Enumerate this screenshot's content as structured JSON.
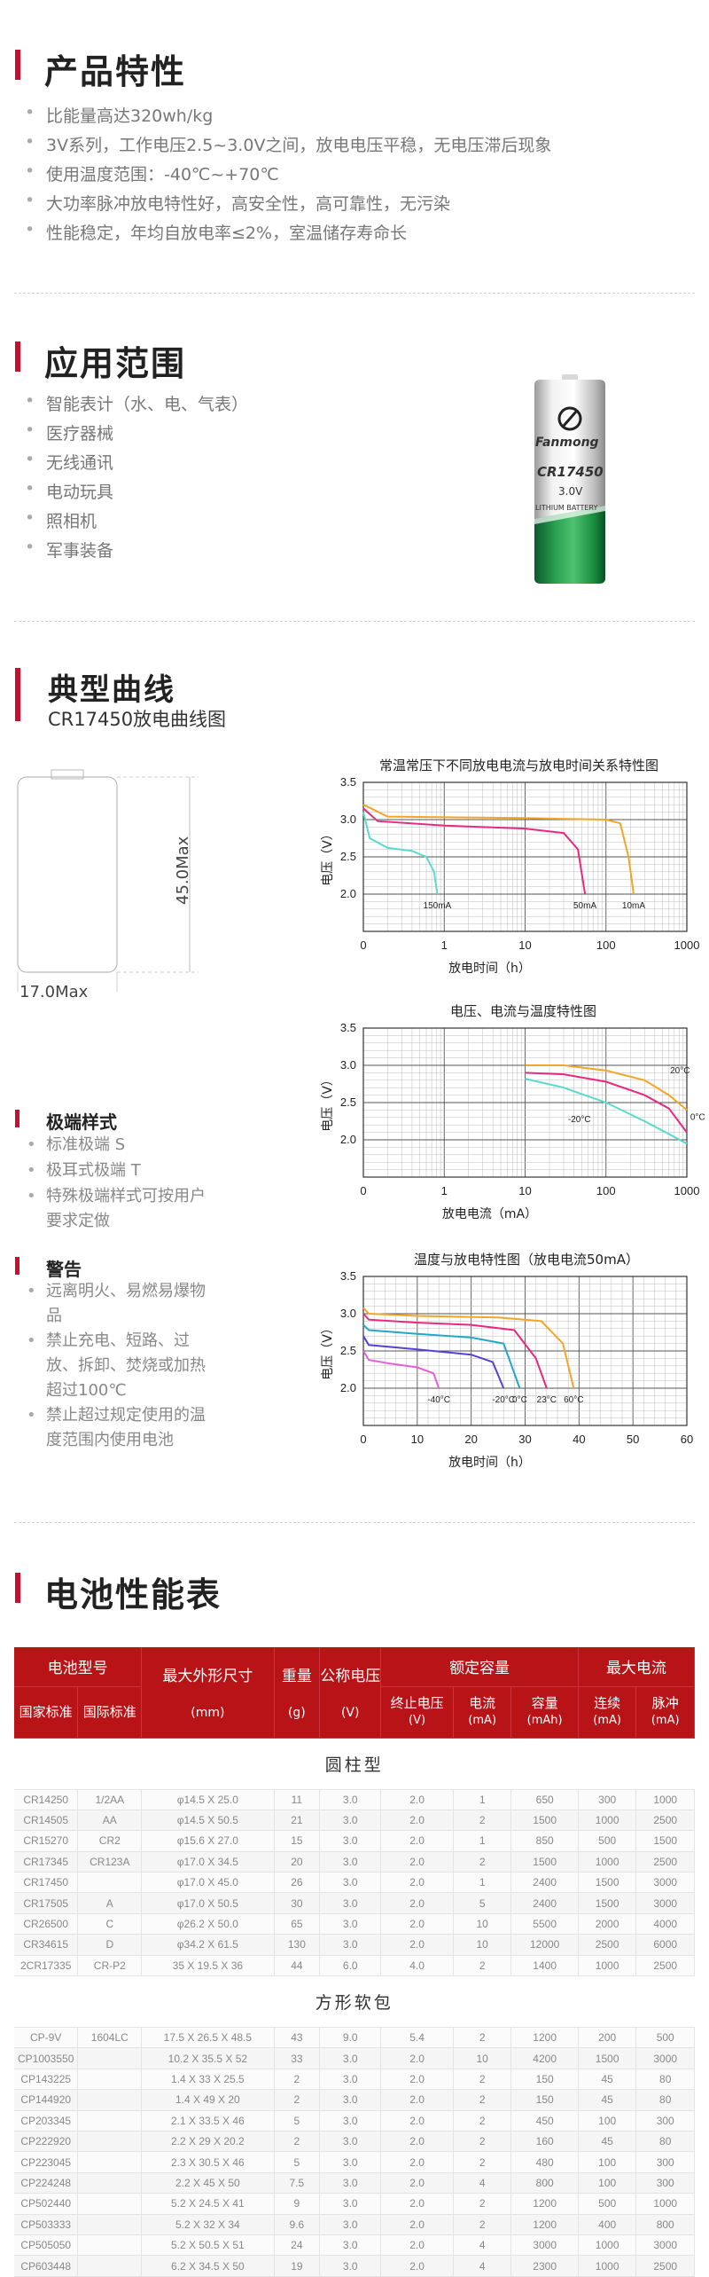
{
  "features": {
    "title": "产品特性",
    "items": [
      "比能量高达320wh/kg",
      "3V系列，工作电压2.5~3.0V之间，放电电压平稳，无电压滞后现象",
      "使用温度范围：-40℃~+70℃",
      "大功率脉冲放电特性好，高安全性，高可靠性，无污染",
      "性能稳定，年均自放电率≤2%，室温储存寿命长"
    ]
  },
  "applications": {
    "title": "应用范围",
    "items": [
      "智能表计（水、电、气表）",
      "医疗器械",
      "无线通讯",
      "电动玩具",
      "照相机",
      "军事装备"
    ],
    "battery_label": {
      "brand": "Fanmong",
      "model": "CR17450",
      "voltage": "3.0V",
      "type": "LITHIUM BATTERY"
    }
  },
  "curves": {
    "title": "典型曲线",
    "subtitle": "CR17450放电曲线图",
    "dim_height": "45.0Max",
    "dim_width": "17.0Max"
  },
  "terminals": {
    "title": "极端样式",
    "items": [
      "标准极端 S",
      "极耳式极端 T",
      "特殊极端样式可按用户要求定做"
    ]
  },
  "warnings": {
    "title": "警告",
    "items": [
      "远离明火、易燃易爆物品",
      "禁止充电、短路、过放、拆卸、焚烧或加热超过100℃",
      "禁止超过规定使用的温度范围内使用电池"
    ]
  },
  "chart_data": [
    {
      "type": "line",
      "title": "常温常压下不同放电电流与放电时间关系特性图",
      "xlabel": "放电时间（h）",
      "ylabel": "电压（V）",
      "xscale": "log",
      "xlim": [
        0.1,
        1000
      ],
      "ylim": [
        1.5,
        3.5
      ],
      "xticks": [
        "0",
        "1",
        "10",
        "100",
        "1000"
      ],
      "yticks": [
        "2.0",
        "2.5",
        "3.0",
        "3.5"
      ],
      "series": [
        {
          "name": "150mA",
          "color": "#5ad9cf",
          "points": [
            [
              0.1,
              3.1
            ],
            [
              0.12,
              2.75
            ],
            [
              0.2,
              2.62
            ],
            [
              0.4,
              2.58
            ],
            [
              0.6,
              2.5
            ],
            [
              0.75,
              2.3
            ],
            [
              0.82,
              2.0
            ]
          ]
        },
        {
          "name": "50mA",
          "color": "#e8297f",
          "points": [
            [
              0.1,
              3.15
            ],
            [
              0.15,
              2.98
            ],
            [
              1,
              2.92
            ],
            [
              10,
              2.88
            ],
            [
              30,
              2.82
            ],
            [
              45,
              2.6
            ],
            [
              55,
              2.0
            ]
          ]
        },
        {
          "name": "10mA",
          "color": "#f3a529",
          "points": [
            [
              0.1,
              3.2
            ],
            [
              0.2,
              3.04
            ],
            [
              10,
              3.02
            ],
            [
              100,
              3.0
            ],
            [
              150,
              2.95
            ],
            [
              190,
              2.5
            ],
            [
              220,
              2.0
            ]
          ]
        }
      ]
    },
    {
      "type": "line",
      "title": "电压、电流与温度特性图",
      "xlabel": "放电电流（mA）",
      "ylabel": "电压（V）",
      "xscale": "log",
      "xlim": [
        0.1,
        1000
      ],
      "ylim": [
        1.5,
        3.5
      ],
      "xticks": [
        "0",
        "1",
        "10",
        "100",
        "1000"
      ],
      "yticks": [
        "2.0",
        "2.5",
        "3.0",
        "3.5"
      ],
      "series": [
        {
          "name": "20°C",
          "color": "#f3a529",
          "points": [
            [
              10,
              3.0
            ],
            [
              30,
              3.0
            ],
            [
              100,
              2.93
            ],
            [
              300,
              2.8
            ],
            [
              600,
              2.6
            ],
            [
              1000,
              2.4
            ]
          ]
        },
        {
          "name": "0°C",
          "color": "#e8297f",
          "points": [
            [
              10,
              2.9
            ],
            [
              30,
              2.88
            ],
            [
              100,
              2.78
            ],
            [
              300,
              2.6
            ],
            [
              600,
              2.42
            ],
            [
              1000,
              2.1
            ]
          ]
        },
        {
          "name": "-20°C",
          "color": "#5ad9cf",
          "points": [
            [
              10,
              2.82
            ],
            [
              30,
              2.7
            ],
            [
              100,
              2.5
            ],
            [
              300,
              2.25
            ],
            [
              1000,
              1.95
            ]
          ]
        }
      ]
    },
    {
      "type": "line",
      "title": "温度与放电特性图（放电电流50mA）",
      "xlabel": "放电时间（h）",
      "ylabel": "电压（V）",
      "xlim": [
        0,
        60
      ],
      "ylim": [
        1.5,
        3.5
      ],
      "xticks": [
        "0",
        "10",
        "20",
        "30",
        "40",
        "50",
        "60"
      ],
      "yticks": [
        "2.0",
        "2.5",
        "3.0",
        "3.5"
      ],
      "series": [
        {
          "name": "-40°C",
          "color": "#e55fd6",
          "points": [
            [
              0,
              2.5
            ],
            [
              1,
              2.38
            ],
            [
              5,
              2.33
            ],
            [
              10,
              2.28
            ],
            [
              13,
              2.2
            ],
            [
              14,
              2.0
            ]
          ]
        },
        {
          "name": "-20°C",
          "color": "#5a3fd8",
          "points": [
            [
              0,
              2.7
            ],
            [
              1,
              2.58
            ],
            [
              10,
              2.52
            ],
            [
              20,
              2.45
            ],
            [
              24,
              2.35
            ],
            [
              26,
              2.0
            ]
          ]
        },
        {
          "name": "0°C",
          "color": "#22a8c8",
          "points": [
            [
              0,
              2.85
            ],
            [
              1,
              2.78
            ],
            [
              10,
              2.73
            ],
            [
              20,
              2.68
            ],
            [
              26,
              2.6
            ],
            [
              29,
              2.0
            ]
          ]
        },
        {
          "name": "23°C",
          "color": "#e8297f",
          "points": [
            [
              0,
              3.0
            ],
            [
              1,
              2.92
            ],
            [
              10,
              2.88
            ],
            [
              20,
              2.85
            ],
            [
              28,
              2.78
            ],
            [
              32,
              2.4
            ],
            [
              34,
              2.0
            ]
          ]
        },
        {
          "name": "60°C",
          "color": "#f3a529",
          "points": [
            [
              0,
              3.08
            ],
            [
              1,
              3.0
            ],
            [
              10,
              2.97
            ],
            [
              25,
              2.95
            ],
            [
              33,
              2.9
            ],
            [
              37,
              2.6
            ],
            [
              39,
              2.0
            ]
          ]
        }
      ]
    }
  ],
  "perf": {
    "title": "电池性能表",
    "headers": {
      "model": "电池型号",
      "size": "最大外形尺寸",
      "weight": "重量",
      "voltage": "公称电压",
      "rated": "额定容量",
      "maxcur": "最大电流",
      "national": "国家标准",
      "intl": "国际标准",
      "size_unit": "(mm)",
      "weight_unit": "(g)",
      "voltage_unit": "(V)",
      "cutoff": "终止电压\n(V)",
      "current": "电流\n(mA)",
      "capacity": "容量\n(mAh)",
      "cont": "连续\n(mA)",
      "pulse": "脉冲\n(mA)"
    },
    "groups": [
      {
        "name": "圆柱型",
        "rows": [
          [
            "CR14250",
            "1/2AA",
            "φ14.5 X 25.0",
            "11",
            "3.0",
            "2.0",
            "1",
            "650",
            "300",
            "1000"
          ],
          [
            "CR14505",
            "AA",
            "φ14.5 X 50.5",
            "21",
            "3.0",
            "2.0",
            "2",
            "1500",
            "1000",
            "2500"
          ],
          [
            "CR15270",
            "CR2",
            "φ15.6 X 27.0",
            "15",
            "3.0",
            "2.0",
            "1",
            "850",
            "500",
            "1500"
          ],
          [
            "CR17345",
            "CR123A",
            "φ17.0 X 34.5",
            "20",
            "3.0",
            "2.0",
            "2",
            "1500",
            "1000",
            "2500"
          ],
          [
            "CR17450",
            "",
            "φ17.0 X 45.0",
            "26",
            "3.0",
            "2.0",
            "1",
            "2400",
            "1500",
            "3000"
          ],
          [
            "CR17505",
            "A",
            "φ17.0 X 50.5",
            "30",
            "3.0",
            "2.0",
            "5",
            "2400",
            "1500",
            "3000"
          ],
          [
            "CR26500",
            "C",
            "φ26.2 X 50.0",
            "65",
            "3.0",
            "2.0",
            "10",
            "5500",
            "2000",
            "4000"
          ],
          [
            "CR34615",
            "D",
            "φ34.2 X 61.5",
            "130",
            "3.0",
            "2.0",
            "10",
            "12000",
            "2500",
            "6000"
          ],
          [
            "2CR17335",
            "CR-P2",
            "35 X 19.5 X 36",
            "44",
            "6.0",
            "4.0",
            "2",
            "1400",
            "1000",
            "2500"
          ]
        ]
      },
      {
        "name": "方形软包",
        "rows": [
          [
            "CP-9V",
            "1604LC",
            "17.5 X 26.5 X 48.5",
            "43",
            "9.0",
            "5.4",
            "2",
            "1200",
            "200",
            "500"
          ],
          [
            "CP1003550",
            "",
            "10.2 X 35.5 X 52",
            "33",
            "3.0",
            "2.0",
            "10",
            "4200",
            "1500",
            "3000"
          ],
          [
            "CP143225",
            "",
            "1.4 X 33 X 25.5",
            "2",
            "3.0",
            "2.0",
            "2",
            "150",
            "45",
            "80"
          ],
          [
            "CP144920",
            "",
            "1.4 X 49 X 20",
            "2",
            "3.0",
            "2.0",
            "2",
            "150",
            "45",
            "80"
          ],
          [
            "CP203345",
            "",
            "2.1 X 33.5 X 46",
            "5",
            "3.0",
            "2.0",
            "2",
            "450",
            "100",
            "300"
          ],
          [
            "CP222920",
            "",
            "2.2 X 29 X 20.2",
            "2",
            "3.0",
            "2.0",
            "2",
            "160",
            "45",
            "80"
          ],
          [
            "CP223045",
            "",
            "2.3 X 30.5 X 46",
            "5",
            "3.0",
            "2.0",
            "2",
            "480",
            "100",
            "300"
          ],
          [
            "CP224248",
            "",
            "2.2 X 45 X 50",
            "7.5",
            "3.0",
            "2.0",
            "4",
            "800",
            "100",
            "300"
          ],
          [
            "CP502440",
            "",
            "5.2 X 24.5 X 41",
            "9",
            "3.0",
            "2.0",
            "2",
            "1200",
            "500",
            "1000"
          ],
          [
            "CP503333",
            "",
            "5.2 X 32 X 34",
            "9.6",
            "3.0",
            "2.0",
            "2",
            "1200",
            "400",
            "800"
          ],
          [
            "CP505050",
            "",
            "5.2 X 50.5 X 51",
            "24",
            "3.0",
            "2.0",
            "4",
            "3000",
            "1000",
            "3000"
          ],
          [
            "CP603448",
            "",
            "6.2 X 34.5 X 50",
            "19",
            "3.0",
            "2.0",
            "4",
            "2300",
            "1000",
            "2500"
          ]
        ]
      }
    ]
  }
}
